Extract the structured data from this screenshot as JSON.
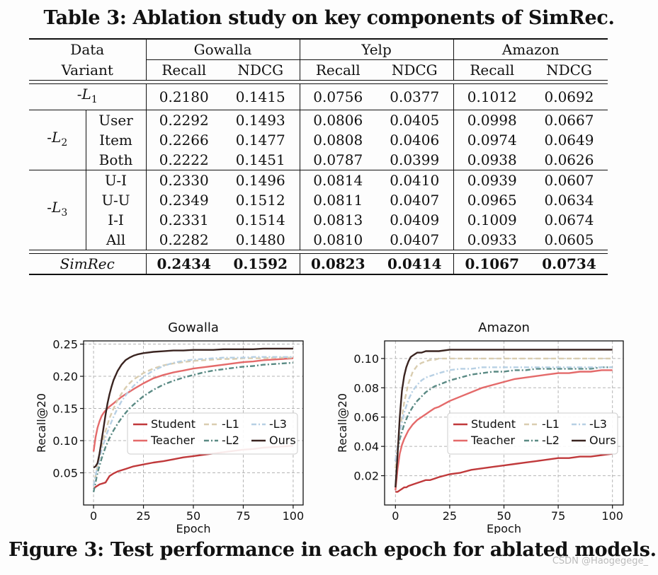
{
  "table": {
    "caption": "Table 3: Ablation study on key components of SimRec.",
    "header_data": "Data",
    "header_variant": "Variant",
    "datasets": [
      "Gowalla",
      "Yelp",
      "Amazon"
    ],
    "metrics": [
      "Recall",
      "NDCG",
      "Recall",
      "NDCG",
      "Recall",
      "NDCG"
    ],
    "groups": [
      {
        "label_prefix": "-",
        "label_sym": "L",
        "label_sub": "1",
        "rows": [
          {
            "variant": "",
            "values": [
              "0.2180",
              "0.1415",
              "0.0756",
              "0.0377",
              "0.1012",
              "0.0692"
            ]
          }
        ]
      },
      {
        "label_prefix": "-",
        "label_sym": "L",
        "label_sub": "2",
        "rows": [
          {
            "variant": "User",
            "values": [
              "0.2292",
              "0.1493",
              "0.0806",
              "0.0405",
              "0.0998",
              "0.0667"
            ]
          },
          {
            "variant": "Item",
            "values": [
              "0.2266",
              "0.1477",
              "0.0808",
              "0.0406",
              "0.0974",
              "0.0649"
            ]
          },
          {
            "variant": "Both",
            "values": [
              "0.2222",
              "0.1451",
              "0.0787",
              "0.0399",
              "0.0938",
              "0.0626"
            ]
          }
        ]
      },
      {
        "label_prefix": "-",
        "label_sym": "L",
        "label_sub": "3",
        "rows": [
          {
            "variant": "U-I",
            "values": [
              "0.2330",
              "0.1496",
              "0.0814",
              "0.0410",
              "0.0939",
              "0.0607"
            ]
          },
          {
            "variant": "U-U",
            "values": [
              "0.2349",
              "0.1512",
              "0.0811",
              "0.0407",
              "0.0965",
              "0.0634"
            ]
          },
          {
            "variant": "I-I",
            "values": [
              "0.2331",
              "0.1514",
              "0.0813",
              "0.0409",
              "0.1009",
              "0.0674"
            ]
          },
          {
            "variant": "All",
            "values": [
              "0.2282",
              "0.1480",
              "0.0810",
              "0.0407",
              "0.0933",
              "0.0605"
            ]
          }
        ]
      }
    ],
    "final": {
      "label": "SimRec",
      "values": [
        "0.2434",
        "0.1592",
        "0.0823",
        "0.0414",
        "0.1067",
        "0.0734"
      ]
    }
  },
  "figure_caption": "Figure 3: Test performance in each epoch for ablated models.",
  "watermark": "CSDN @Haogegege_",
  "chart_data": [
    {
      "type": "line",
      "title": "Gowalla",
      "xlabel": "Epoch",
      "ylabel": "Recall@20",
      "xlim": [
        -5,
        105
      ],
      "ylim": [
        0.0,
        0.255
      ],
      "xticks": [
        0,
        25,
        50,
        75,
        100
      ],
      "yticks": [
        0.05,
        0.1,
        0.15,
        0.2,
        0.25
      ],
      "ytick_labels": [
        "0.05",
        "0.10",
        "0.15",
        "0.20",
        "0.25"
      ],
      "grid": true,
      "legend_placement": "lower-right",
      "series": [
        {
          "name": "Student",
          "color": "#c0393b",
          "dash": "solid",
          "x": [
            0,
            1,
            2,
            3,
            4,
            5,
            6,
            7,
            8,
            9,
            10,
            12,
            14,
            16,
            18,
            20,
            25,
            30,
            35,
            40,
            45,
            50,
            55,
            60,
            65,
            70,
            75,
            80,
            85,
            90,
            95,
            100
          ],
          "y": [
            0.025,
            0.028,
            0.03,
            0.032,
            0.033,
            0.034,
            0.035,
            0.04,
            0.045,
            0.047,
            0.049,
            0.052,
            0.054,
            0.056,
            0.058,
            0.06,
            0.063,
            0.066,
            0.068,
            0.071,
            0.074,
            0.076,
            0.078,
            0.08,
            0.082,
            0.084,
            0.086,
            0.087,
            0.089,
            0.09,
            0.091,
            0.092
          ]
        },
        {
          "name": "Teacher",
          "color": "#e46a6a",
          "dash": "solid",
          "x": [
            0,
            1,
            2,
            3,
            4,
            5,
            6,
            8,
            10,
            12,
            14,
            16,
            18,
            20,
            25,
            30,
            35,
            40,
            45,
            50,
            55,
            60,
            65,
            70,
            75,
            80,
            85,
            90,
            95,
            100
          ],
          "y": [
            0.083,
            0.105,
            0.12,
            0.13,
            0.138,
            0.143,
            0.147,
            0.153,
            0.158,
            0.163,
            0.168,
            0.172,
            0.176,
            0.18,
            0.189,
            0.197,
            0.202,
            0.206,
            0.209,
            0.212,
            0.214,
            0.216,
            0.218,
            0.22,
            0.222,
            0.223,
            0.225,
            0.226,
            0.227,
            0.228
          ]
        },
        {
          "name": "-L1",
          "color": "#d9cdb0",
          "dash": "dashed",
          "x": [
            0,
            2,
            4,
            6,
            8,
            10,
            12,
            14,
            16,
            18,
            20,
            25,
            30,
            35,
            40,
            45,
            50,
            55,
            60,
            65,
            70,
            75,
            80,
            85,
            90,
            95,
            100
          ],
          "y": [
            0.03,
            0.06,
            0.09,
            0.115,
            0.135,
            0.15,
            0.163,
            0.173,
            0.182,
            0.189,
            0.195,
            0.205,
            0.212,
            0.217,
            0.22,
            0.222,
            0.224,
            0.225,
            0.226,
            0.227,
            0.227,
            0.228,
            0.228,
            0.228,
            0.229,
            0.229,
            0.229
          ]
        },
        {
          "name": "-L2",
          "color": "#5a8a84",
          "dash": "dashdot",
          "x": [
            0,
            2,
            4,
            6,
            8,
            10,
            12,
            14,
            16,
            18,
            20,
            25,
            30,
            35,
            40,
            45,
            50,
            55,
            60,
            65,
            70,
            75,
            80,
            85,
            90,
            95,
            100
          ],
          "y": [
            0.02,
            0.05,
            0.072,
            0.09,
            0.104,
            0.116,
            0.126,
            0.135,
            0.143,
            0.15,
            0.156,
            0.169,
            0.179,
            0.187,
            0.193,
            0.198,
            0.202,
            0.206,
            0.209,
            0.211,
            0.213,
            0.215,
            0.216,
            0.218,
            0.219,
            0.22,
            0.221
          ]
        },
        {
          "name": "-L3",
          "color": "#b7d0e4",
          "dash": "dashdot",
          "x": [
            0,
            2,
            4,
            6,
            8,
            10,
            12,
            14,
            16,
            18,
            20,
            25,
            30,
            35,
            40,
            45,
            50,
            55,
            60,
            65,
            70,
            75,
            80,
            85,
            90,
            95,
            100
          ],
          "y": [
            0.03,
            0.06,
            0.085,
            0.105,
            0.122,
            0.137,
            0.15,
            0.161,
            0.17,
            0.178,
            0.185,
            0.199,
            0.209,
            0.216,
            0.221,
            0.224,
            0.226,
            0.227,
            0.228,
            0.229,
            0.229,
            0.229,
            0.23,
            0.23,
            0.23,
            0.23,
            0.23
          ]
        },
        {
          "name": "Ours",
          "color": "#3a2420",
          "dash": "solid",
          "x": [
            0,
            1,
            2,
            3,
            4,
            5,
            6,
            7,
            8,
            9,
            10,
            12,
            14,
            16,
            18,
            20,
            22,
            25,
            30,
            35,
            40,
            45,
            50,
            55,
            60,
            65,
            70,
            75,
            80,
            85,
            90,
            95,
            100
          ],
          "y": [
            0.058,
            0.06,
            0.065,
            0.08,
            0.1,
            0.12,
            0.14,
            0.158,
            0.172,
            0.184,
            0.194,
            0.208,
            0.218,
            0.225,
            0.229,
            0.232,
            0.234,
            0.236,
            0.238,
            0.239,
            0.24,
            0.24,
            0.241,
            0.241,
            0.241,
            0.242,
            0.242,
            0.242,
            0.242,
            0.243,
            0.243,
            0.243,
            0.243
          ]
        }
      ]
    },
    {
      "type": "line",
      "title": "Amazon",
      "xlabel": "Epoch",
      "ylabel": "Recall@20",
      "xlim": [
        -5,
        105
      ],
      "ylim": [
        0.0,
        0.112
      ],
      "xticks": [
        0,
        25,
        50,
        75,
        100
      ],
      "yticks": [
        0.02,
        0.04,
        0.06,
        0.08,
        0.1
      ],
      "ytick_labels": [
        "0.02",
        "0.04",
        "0.06",
        "0.08",
        "0.10"
      ],
      "grid": true,
      "legend_placement": "lower-right",
      "series": [
        {
          "name": "Student",
          "color": "#c0393b",
          "dash": "solid",
          "x": [
            0,
            1,
            2,
            3,
            4,
            5,
            6,
            8,
            10,
            12,
            14,
            16,
            18,
            20,
            25,
            30,
            35,
            40,
            45,
            50,
            55,
            60,
            65,
            70,
            75,
            80,
            85,
            90,
            95,
            100
          ],
          "y": [
            0.009,
            0.009,
            0.01,
            0.011,
            0.012,
            0.012,
            0.013,
            0.014,
            0.015,
            0.016,
            0.017,
            0.017,
            0.018,
            0.019,
            0.021,
            0.022,
            0.024,
            0.025,
            0.026,
            0.027,
            0.028,
            0.029,
            0.03,
            0.031,
            0.032,
            0.032,
            0.033,
            0.033,
            0.034,
            0.035
          ]
        },
        {
          "name": "Teacher",
          "color": "#e46a6a",
          "dash": "solid",
          "x": [
            0,
            1,
            2,
            3,
            4,
            5,
            6,
            8,
            10,
            12,
            14,
            16,
            18,
            20,
            25,
            30,
            35,
            40,
            45,
            50,
            55,
            60,
            65,
            70,
            75,
            80,
            85,
            90,
            95,
            100
          ],
          "y": [
            0.01,
            0.025,
            0.035,
            0.041,
            0.045,
            0.048,
            0.051,
            0.055,
            0.058,
            0.06,
            0.062,
            0.064,
            0.066,
            0.067,
            0.071,
            0.074,
            0.077,
            0.08,
            0.082,
            0.084,
            0.086,
            0.087,
            0.088,
            0.089,
            0.09,
            0.09,
            0.091,
            0.091,
            0.092,
            0.092
          ]
        },
        {
          "name": "-L1",
          "color": "#d9cdb0",
          "dash": "dashed",
          "x": [
            0,
            2,
            4,
            6,
            8,
            10,
            12,
            14,
            16,
            18,
            20,
            25,
            30,
            35,
            40,
            45,
            50,
            55,
            60,
            65,
            70,
            75,
            80,
            85,
            90,
            95,
            100
          ],
          "y": [
            0.025,
            0.05,
            0.07,
            0.083,
            0.091,
            0.095,
            0.097,
            0.098,
            0.099,
            0.099,
            0.1,
            0.1,
            0.1,
            0.1,
            0.1,
            0.1,
            0.1,
            0.1,
            0.1,
            0.1,
            0.1,
            0.1,
            0.1,
            0.1,
            0.1,
            0.1,
            0.1
          ]
        },
        {
          "name": "-L2",
          "color": "#5a8a84",
          "dash": "dashdot",
          "x": [
            0,
            2,
            4,
            6,
            8,
            10,
            12,
            14,
            16,
            18,
            20,
            25,
            30,
            35,
            40,
            45,
            50,
            55,
            60,
            65,
            70,
            75,
            80,
            85,
            90,
            95,
            100
          ],
          "y": [
            0.03,
            0.045,
            0.055,
            0.062,
            0.067,
            0.071,
            0.074,
            0.077,
            0.079,
            0.081,
            0.082,
            0.085,
            0.087,
            0.089,
            0.09,
            0.091,
            0.091,
            0.092,
            0.092,
            0.093,
            0.093,
            0.093,
            0.093,
            0.093,
            0.093,
            0.094,
            0.094
          ]
        },
        {
          "name": "-L3",
          "color": "#b7d0e4",
          "dash": "dashdot",
          "x": [
            0,
            2,
            4,
            6,
            8,
            10,
            12,
            14,
            16,
            18,
            20,
            25,
            30,
            35,
            40,
            45,
            50,
            55,
            60,
            65,
            70,
            75,
            80,
            85,
            90,
            95,
            100
          ],
          "y": [
            0.03,
            0.05,
            0.063,
            0.072,
            0.078,
            0.082,
            0.085,
            0.087,
            0.088,
            0.089,
            0.09,
            0.092,
            0.093,
            0.093,
            0.094,
            0.094,
            0.094,
            0.094,
            0.094,
            0.094,
            0.094,
            0.094,
            0.094,
            0.094,
            0.094,
            0.094,
            0.094
          ]
        },
        {
          "name": "Ours",
          "color": "#3a2420",
          "dash": "solid",
          "x": [
            0,
            1,
            2,
            3,
            4,
            5,
            6,
            7,
            8,
            9,
            10,
            12,
            14,
            16,
            18,
            20,
            25,
            30,
            35,
            40,
            45,
            50,
            55,
            60,
            65,
            70,
            75,
            80,
            85,
            90,
            95,
            100
          ],
          "y": [
            0.012,
            0.035,
            0.06,
            0.078,
            0.088,
            0.094,
            0.098,
            0.101,
            0.102,
            0.103,
            0.104,
            0.104,
            0.105,
            0.105,
            0.105,
            0.105,
            0.106,
            0.106,
            0.106,
            0.106,
            0.106,
            0.106,
            0.106,
            0.106,
            0.106,
            0.106,
            0.106,
            0.106,
            0.106,
            0.106,
            0.106,
            0.106
          ]
        }
      ]
    }
  ]
}
